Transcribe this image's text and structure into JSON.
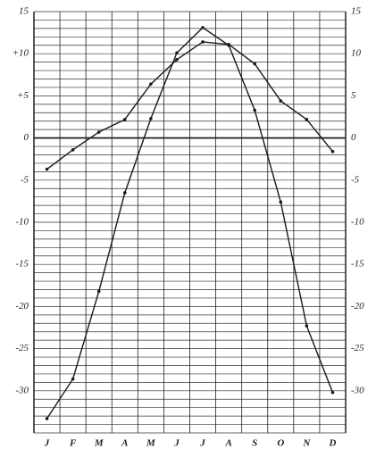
{
  "chart_data": {
    "type": "line",
    "categories": [
      "J",
      "F",
      "M",
      "A",
      "M",
      "J",
      "J",
      "A",
      "S",
      "O",
      "N",
      "D"
    ],
    "series": [
      {
        "color": "#1a1a1a",
        "values": [
          -33.3,
          -28.6,
          -18.2,
          -6.5,
          2.3,
          10.1,
          13.1,
          11.0,
          3.3,
          -7.6,
          -22.3,
          -30.2
        ]
      },
      {
        "color": "#1a1a1a",
        "values": [
          -3.7,
          -1.4,
          0.7,
          2.2,
          6.4,
          9.3,
          11.4,
          11.1,
          8.8,
          4.4,
          2.2,
          -1.6
        ]
      }
    ],
    "ylim": [
      -35,
      15
    ],
    "yticks": [
      15,
      {
        "value": 10,
        "label": "+10"
      },
      {
        "value": 5,
        "label": "+5"
      },
      0,
      -5,
      -10,
      -15,
      -20,
      -25,
      -30
    ],
    "y2lim": [
      -35,
      15
    ],
    "y2ticks": [
      15,
      10,
      5,
      0,
      -5,
      -10,
      -15,
      -20,
      -25,
      -30
    ],
    "minor_yticks": [
      15,
      14,
      13,
      12,
      11,
      10,
      9,
      8,
      7,
      6,
      5,
      4,
      3,
      2,
      1,
      0,
      -1,
      -2,
      -3,
      -4,
      -5,
      -6,
      -7,
      -8,
      -9,
      -10,
      -11,
      -12,
      -13,
      -14,
      -15,
      -16,
      -17,
      -18,
      -19,
      -20,
      -21,
      -22,
      -23,
      -24,
      -25,
      -26,
      -27,
      -28,
      -29,
      -30,
      -31,
      -32,
      -33,
      -34,
      -35
    ],
    "grid": true
  }
}
